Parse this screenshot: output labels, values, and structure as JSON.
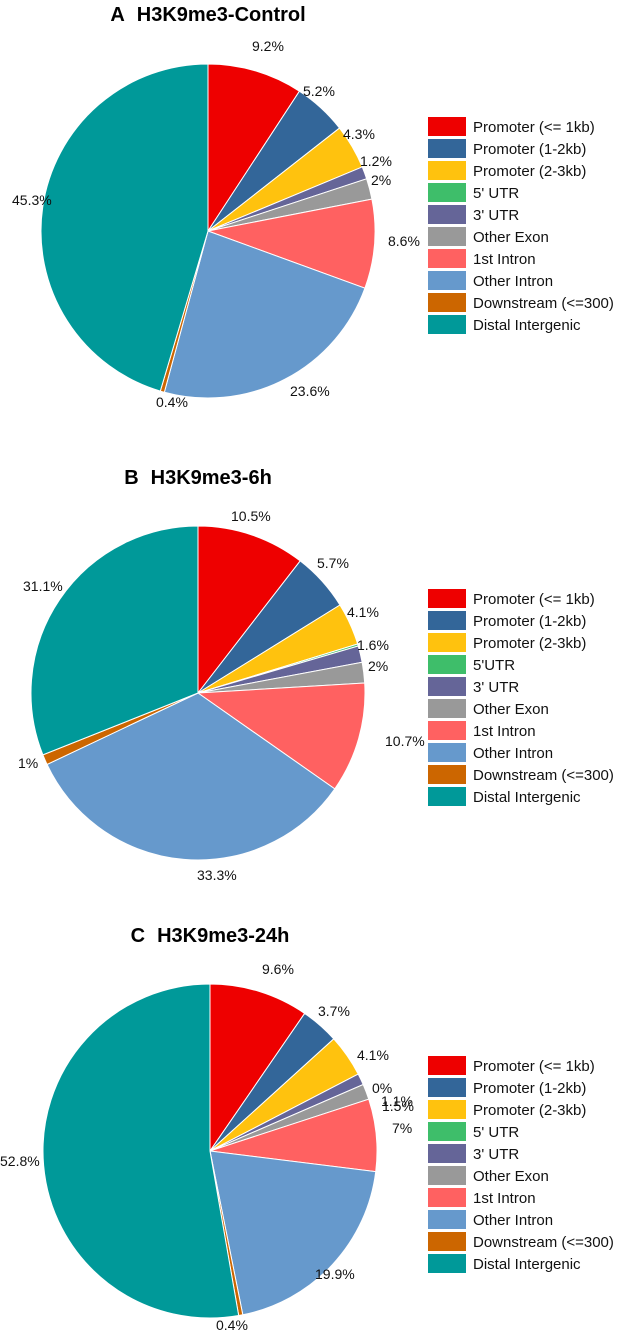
{
  "colors": {
    "promoter_1kb": "#EE0000",
    "promoter_1_2kb": "#336699",
    "promoter_2_3kb": "#FFC20E",
    "utr5": "#3EBE6A",
    "utr3": "#656598",
    "other_exon": "#999999",
    "first_intron": "#FF6161",
    "other_intron": "#6699CC",
    "downstream": "#CC6600",
    "distal_intergenic": "#009999"
  },
  "chart_data": [
    {
      "type": "pie",
      "panel_letter": "A",
      "title": "H3K9me3-Control",
      "categories": [
        "Promoter (<= 1kb)",
        "Promoter (1-2kb)",
        "Promoter (2-3kb)",
        "5' UTR",
        "3' UTR",
        "Other Exon",
        "1st Intron",
        "Other Intron",
        "Downstream (<=300)",
        "Distal Intergenic"
      ],
      "color_keys": [
        "promoter_1kb",
        "promoter_1_2kb",
        "promoter_2_3kb",
        "utr5",
        "utr3",
        "other_exon",
        "first_intron",
        "other_intron",
        "downstream",
        "distal_intergenic"
      ],
      "values": [
        9.2,
        5.2,
        4.3,
        0,
        1.2,
        2,
        8.6,
        23.6,
        0.4,
        45.3
      ],
      "value_labels": [
        "9.2%",
        "5.2%",
        "4.3%",
        null,
        "1.2%",
        "2%",
        "8.6%",
        "23.6%",
        "0.4%",
        "45.3%"
      ],
      "legend_position": "right"
    },
    {
      "type": "pie",
      "panel_letter": "B",
      "title": "H3K9me3-6h",
      "categories": [
        "Promoter (<= 1kb)",
        "Promoter (1-2kb)",
        "Promoter (2-3kb)",
        "5'UTR",
        "3' UTR",
        "Other Exon",
        "1st Intron",
        "Other Intron",
        "Downstream (<=300)",
        "Distal Intergenic"
      ],
      "color_keys": [
        "promoter_1kb",
        "promoter_1_2kb",
        "promoter_2_3kb",
        "utr5",
        "utr3",
        "other_exon",
        "first_intron",
        "other_intron",
        "downstream",
        "distal_intergenic"
      ],
      "values": [
        10.5,
        5.7,
        4.1,
        0.2,
        1.6,
        2,
        10.7,
        33.3,
        1,
        31.1
      ],
      "value_labels": [
        "10.5%",
        "5.7%",
        "4.1%",
        null,
        "1.6%",
        "2%",
        "10.7%",
        "33.3%",
        "1%",
        "31.1%"
      ],
      "legend_position": "right"
    },
    {
      "type": "pie",
      "panel_letter": "C",
      "title": "H3K9me3-24h",
      "categories": [
        "Promoter (<= 1kb)",
        "Promoter (1-2kb)",
        "Promoter (2-3kb)",
        "5' UTR",
        "3' UTR",
        "Other Exon",
        "1st Intron",
        "Other Intron",
        "Downstream (<=300)",
        "Distal Intergenic"
      ],
      "color_keys": [
        "promoter_1kb",
        "promoter_1_2kb",
        "promoter_2_3kb",
        "utr5",
        "utr3",
        "other_exon",
        "first_intron",
        "other_intron",
        "downstream",
        "distal_intergenic"
      ],
      "values": [
        9.6,
        3.7,
        4.1,
        0,
        1.1,
        1.5,
        7,
        19.9,
        0.4,
        52.8
      ],
      "value_labels": [
        "9.6%",
        "3.7%",
        "4.1%",
        "0%",
        "1.1%",
        "1.5%",
        "7%",
        "19.9%",
        "0.4%",
        "52.8%"
      ],
      "legend_position": "right"
    }
  ]
}
